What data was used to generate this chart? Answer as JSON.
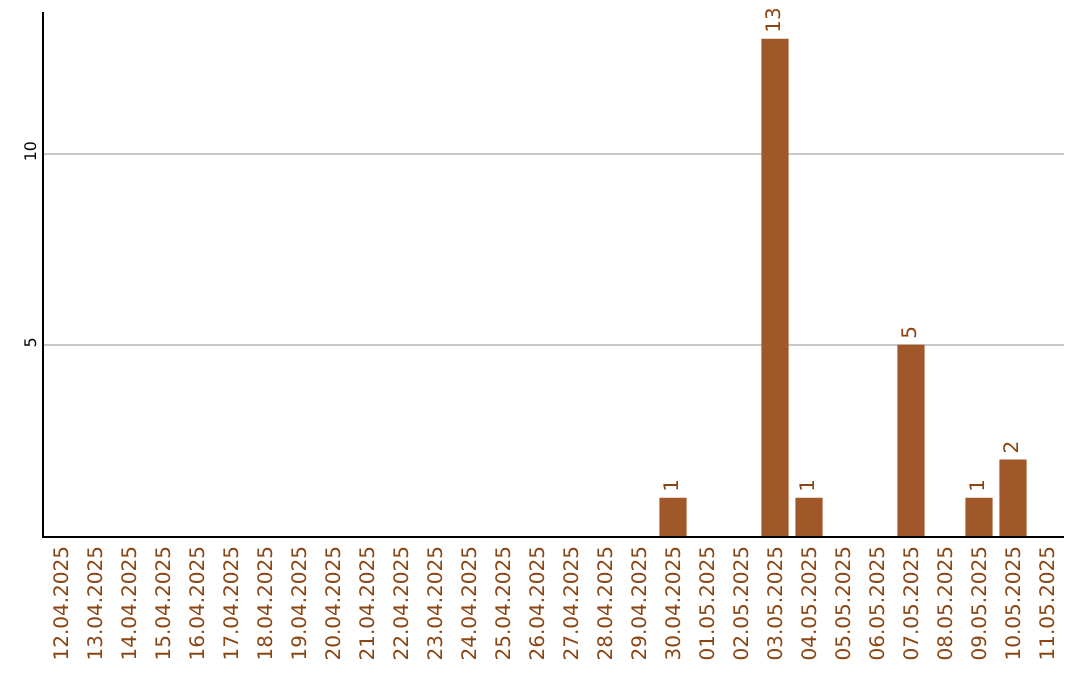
{
  "chart_data": {
    "type": "bar",
    "categories": [
      "12.04.2025",
      "13.04.2025",
      "14.04.2025",
      "15.04.2025",
      "16.04.2025",
      "17.04.2025",
      "18.04.2025",
      "19.04.2025",
      "20.04.2025",
      "21.04.2025",
      "22.04.2025",
      "23.04.2025",
      "24.04.2025",
      "25.04.2025",
      "26.04.2025",
      "27.04.2025",
      "28.04.2025",
      "29.04.2025",
      "30.04.2025",
      "01.05.2025",
      "02.05.2025",
      "03.05.2025",
      "04.05.2025",
      "05.05.2025",
      "06.05.2025",
      "07.05.2025",
      "08.05.2025",
      "09.05.2025",
      "10.05.2025",
      "11.05.2025"
    ],
    "values": [
      0,
      0,
      0,
      0,
      0,
      0,
      0,
      0,
      0,
      0,
      0,
      0,
      0,
      0,
      0,
      0,
      0,
      0,
      1,
      0,
      0,
      13,
      1,
      0,
      0,
      5,
      0,
      1,
      2,
      0
    ],
    "value_labels": [
      null,
      null,
      null,
      null,
      null,
      null,
      null,
      null,
      null,
      null,
      null,
      null,
      null,
      null,
      null,
      null,
      null,
      null,
      "1",
      null,
      null,
      "13",
      "1",
      null,
      null,
      "5",
      null,
      "1",
      "2",
      null
    ],
    "color": "#a0582a",
    "ylim": [
      0,
      13.7
    ],
    "yticks": [
      5,
      10
    ],
    "grid": "y"
  }
}
